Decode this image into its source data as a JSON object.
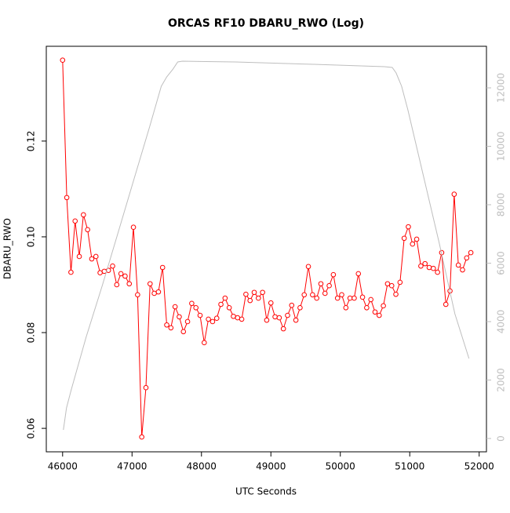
{
  "chart_data": {
    "type": "line",
    "title": "ORCAS RF10 DBARU_RWO (Log)",
    "xlabel": "UTC Seconds",
    "ylabel": "DBARU_RWO",
    "xlim": [
      45765,
      52105
    ],
    "ylim": [
      0.0551,
      0.1398
    ],
    "y2lim": [
      -456,
      13423
    ],
    "xticks": [
      46000,
      47000,
      48000,
      49000,
      50000,
      51000,
      52000
    ],
    "yticks": [
      0.06,
      0.08,
      {
        "value": 0.1,
        "label": "0.10"
      },
      0.12
    ],
    "y2ticks": [
      0,
      2000,
      4000,
      6000,
      8000,
      10000,
      12000
    ],
    "y2color": "#bebebe",
    "series": [
      {
        "color": "#ff0000",
        "markers": true,
        "axis": "y",
        "x": [
          46000,
          46060,
          46120,
          46180,
          46240,
          46300,
          46360,
          46420,
          46480,
          46540,
          46600,
          46660,
          46720,
          46780,
          46840,
          46900,
          46960,
          47020,
          47080,
          47140,
          47200,
          47260,
          47320,
          47380,
          47440,
          47500,
          47560,
          47620,
          47680,
          47740,
          47800,
          47860,
          47920,
          47980,
          48040,
          48100,
          48160,
          48220,
          48280,
          48340,
          48400,
          48460,
          48520,
          48580,
          48640,
          48700,
          48760,
          48820,
          48880,
          48940,
          49000,
          49060,
          49120,
          49180,
          49240,
          49300,
          49360,
          49420,
          49480,
          49540,
          49600,
          49660,
          49720,
          49780,
          49840,
          49900,
          49960,
          50020,
          50080,
          50140,
          50200,
          50260,
          50320,
          50380,
          50440,
          50500,
          50560,
          50620,
          50680,
          50740,
          50800,
          50860,
          50920,
          50980,
          51040,
          51100,
          51160,
          51220,
          51280,
          51340,
          51400,
          51460,
          51520,
          51580,
          51640,
          51700,
          51760,
          51820,
          51880
        ],
        "values": [
          0.1369,
          0.1082,
          0.0926,
          0.1033,
          0.0959,
          0.1046,
          0.1015,
          0.0954,
          0.0959,
          0.0925,
          0.0928,
          0.093,
          0.0939,
          0.09,
          0.0923,
          0.0918,
          0.0902,
          0.102,
          0.0879,
          0.0582,
          0.0685,
          0.0902,
          0.0882,
          0.0885,
          0.0936,
          0.0816,
          0.081,
          0.0854,
          0.0833,
          0.0802,
          0.0823,
          0.0861,
          0.0852,
          0.0836,
          0.0779,
          0.0828,
          0.0823,
          0.083,
          0.0859,
          0.0872,
          0.0852,
          0.0834,
          0.0831,
          0.0828,
          0.088,
          0.0867,
          0.0884,
          0.0872,
          0.0884,
          0.0826,
          0.0862,
          0.0833,
          0.0831,
          0.0808,
          0.0836,
          0.0857,
          0.0826,
          0.0852,
          0.0879,
          0.0938,
          0.0879,
          0.0872,
          0.0902,
          0.0882,
          0.0898,
          0.0921,
          0.0872,
          0.0879,
          0.0852,
          0.0872,
          0.0872,
          0.0923,
          0.0874,
          0.0852,
          0.0869,
          0.0843,
          0.0836,
          0.0856,
          0.0902,
          0.0898,
          0.088,
          0.0905,
          0.0997,
          0.1021,
          0.0985,
          0.0995,
          0.0939,
          0.0944,
          0.0936,
          0.0934,
          0.0926,
          0.0967,
          0.0859,
          0.0887,
          0.1089,
          0.0941,
          0.0931,
          0.0956,
          0.0967
        ]
      },
      {
        "color": "#bebebe",
        "markers": false,
        "axis": "y2",
        "x": [
          46011,
          46056,
          46124,
          46338,
          46575,
          46801,
          47026,
          47252,
          47421,
          47500,
          47590,
          47658,
          47726,
          48492,
          49620,
          50635,
          50748,
          50804,
          50883,
          50973,
          51199,
          51425,
          51650,
          51853
        ],
        "values": [
          295,
          1047,
          1664,
          3463,
          5262,
          7060,
          8859,
          10658,
          12054,
          12376,
          12644,
          12886,
          12913,
          12886,
          12805,
          12725,
          12698,
          12510,
          12054,
          11248,
          8966,
          6685,
          4268,
          2738
        ]
      }
    ]
  }
}
